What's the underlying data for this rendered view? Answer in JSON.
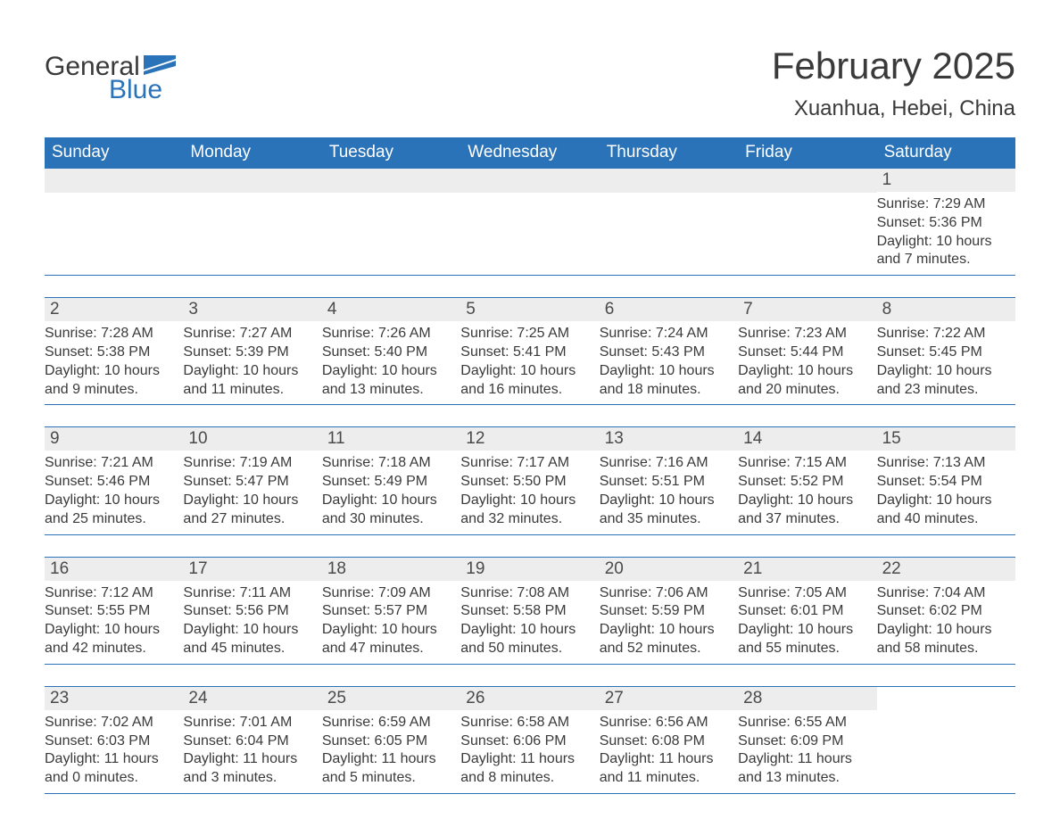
{
  "logo": {
    "general": "General",
    "blue": "Blue"
  },
  "title": "February 2025",
  "location": "Xuanhua, Hebei, China",
  "colors": {
    "header_bg": "#2b73b8",
    "header_text": "#ffffff",
    "daynum_bg": "#ededed",
    "border": "#2b73b8",
    "text": "#3a3a3a",
    "logo_blue": "#2b73b8"
  },
  "weekdays": [
    "Sunday",
    "Monday",
    "Tuesday",
    "Wednesday",
    "Thursday",
    "Friday",
    "Saturday"
  ],
  "weeks": [
    [
      {
        "empty": true
      },
      {
        "empty": true
      },
      {
        "empty": true
      },
      {
        "empty": true
      },
      {
        "empty": true
      },
      {
        "empty": true
      },
      {
        "day": "1",
        "sunrise": "Sunrise: 7:29 AM",
        "sunset": "Sunset: 5:36 PM",
        "daylight": "Daylight: 10 hours and 7 minutes."
      }
    ],
    [
      {
        "day": "2",
        "sunrise": "Sunrise: 7:28 AM",
        "sunset": "Sunset: 5:38 PM",
        "daylight": "Daylight: 10 hours and 9 minutes."
      },
      {
        "day": "3",
        "sunrise": "Sunrise: 7:27 AM",
        "sunset": "Sunset: 5:39 PM",
        "daylight": "Daylight: 10 hours and 11 minutes."
      },
      {
        "day": "4",
        "sunrise": "Sunrise: 7:26 AM",
        "sunset": "Sunset: 5:40 PM",
        "daylight": "Daylight: 10 hours and 13 minutes."
      },
      {
        "day": "5",
        "sunrise": "Sunrise: 7:25 AM",
        "sunset": "Sunset: 5:41 PM",
        "daylight": "Daylight: 10 hours and 16 minutes."
      },
      {
        "day": "6",
        "sunrise": "Sunrise: 7:24 AM",
        "sunset": "Sunset: 5:43 PM",
        "daylight": "Daylight: 10 hours and 18 minutes."
      },
      {
        "day": "7",
        "sunrise": "Sunrise: 7:23 AM",
        "sunset": "Sunset: 5:44 PM",
        "daylight": "Daylight: 10 hours and 20 minutes."
      },
      {
        "day": "8",
        "sunrise": "Sunrise: 7:22 AM",
        "sunset": "Sunset: 5:45 PM",
        "daylight": "Daylight: 10 hours and 23 minutes."
      }
    ],
    [
      {
        "day": "9",
        "sunrise": "Sunrise: 7:21 AM",
        "sunset": "Sunset: 5:46 PM",
        "daylight": "Daylight: 10 hours and 25 minutes."
      },
      {
        "day": "10",
        "sunrise": "Sunrise: 7:19 AM",
        "sunset": "Sunset: 5:47 PM",
        "daylight": "Daylight: 10 hours and 27 minutes."
      },
      {
        "day": "11",
        "sunrise": "Sunrise: 7:18 AM",
        "sunset": "Sunset: 5:49 PM",
        "daylight": "Daylight: 10 hours and 30 minutes."
      },
      {
        "day": "12",
        "sunrise": "Sunrise: 7:17 AM",
        "sunset": "Sunset: 5:50 PM",
        "daylight": "Daylight: 10 hours and 32 minutes."
      },
      {
        "day": "13",
        "sunrise": "Sunrise: 7:16 AM",
        "sunset": "Sunset: 5:51 PM",
        "daylight": "Daylight: 10 hours and 35 minutes."
      },
      {
        "day": "14",
        "sunrise": "Sunrise: 7:15 AM",
        "sunset": "Sunset: 5:52 PM",
        "daylight": "Daylight: 10 hours and 37 minutes."
      },
      {
        "day": "15",
        "sunrise": "Sunrise: 7:13 AM",
        "sunset": "Sunset: 5:54 PM",
        "daylight": "Daylight: 10 hours and 40 minutes."
      }
    ],
    [
      {
        "day": "16",
        "sunrise": "Sunrise: 7:12 AM",
        "sunset": "Sunset: 5:55 PM",
        "daylight": "Daylight: 10 hours and 42 minutes."
      },
      {
        "day": "17",
        "sunrise": "Sunrise: 7:11 AM",
        "sunset": "Sunset: 5:56 PM",
        "daylight": "Daylight: 10 hours and 45 minutes."
      },
      {
        "day": "18",
        "sunrise": "Sunrise: 7:09 AM",
        "sunset": "Sunset: 5:57 PM",
        "daylight": "Daylight: 10 hours and 47 minutes."
      },
      {
        "day": "19",
        "sunrise": "Sunrise: 7:08 AM",
        "sunset": "Sunset: 5:58 PM",
        "daylight": "Daylight: 10 hours and 50 minutes."
      },
      {
        "day": "20",
        "sunrise": "Sunrise: 7:06 AM",
        "sunset": "Sunset: 5:59 PM",
        "daylight": "Daylight: 10 hours and 52 minutes."
      },
      {
        "day": "21",
        "sunrise": "Sunrise: 7:05 AM",
        "sunset": "Sunset: 6:01 PM",
        "daylight": "Daylight: 10 hours and 55 minutes."
      },
      {
        "day": "22",
        "sunrise": "Sunrise: 7:04 AM",
        "sunset": "Sunset: 6:02 PM",
        "daylight": "Daylight: 10 hours and 58 minutes."
      }
    ],
    [
      {
        "day": "23",
        "sunrise": "Sunrise: 7:02 AM",
        "sunset": "Sunset: 6:03 PM",
        "daylight": "Daylight: 11 hours and 0 minutes."
      },
      {
        "day": "24",
        "sunrise": "Sunrise: 7:01 AM",
        "sunset": "Sunset: 6:04 PM",
        "daylight": "Daylight: 11 hours and 3 minutes."
      },
      {
        "day": "25",
        "sunrise": "Sunrise: 6:59 AM",
        "sunset": "Sunset: 6:05 PM",
        "daylight": "Daylight: 11 hours and 5 minutes."
      },
      {
        "day": "26",
        "sunrise": "Sunrise: 6:58 AM",
        "sunset": "Sunset: 6:06 PM",
        "daylight": "Daylight: 11 hours and 8 minutes."
      },
      {
        "day": "27",
        "sunrise": "Sunrise: 6:56 AM",
        "sunset": "Sunset: 6:08 PM",
        "daylight": "Daylight: 11 hours and 11 minutes."
      },
      {
        "day": "28",
        "sunrise": "Sunrise: 6:55 AM",
        "sunset": "Sunset: 6:09 PM",
        "daylight": "Daylight: 11 hours and 13 minutes."
      },
      {
        "empty": true,
        "noBg": true
      }
    ]
  ]
}
